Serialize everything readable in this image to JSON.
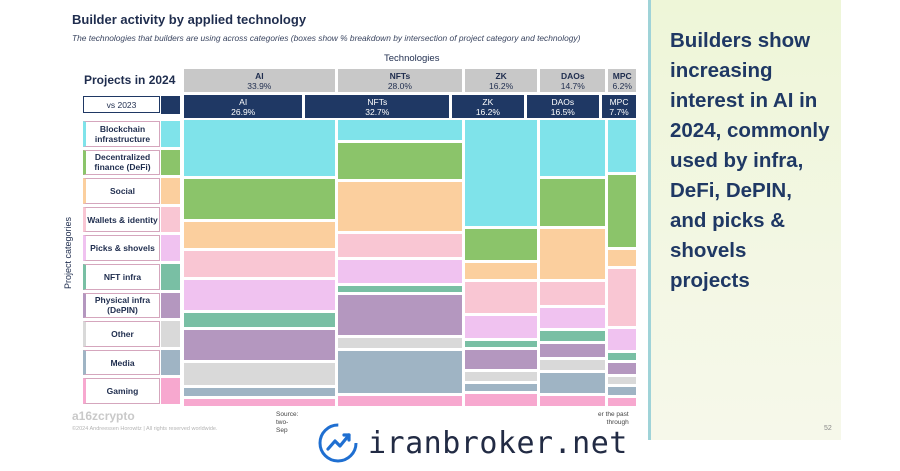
{
  "title": "Builder activity by applied technology",
  "subtitle": "The technologies that builders are using across categories (boxes show % breakdown by intersection of project category and technology)",
  "technologies_label": "Technologies",
  "projects_label": "Projects in 2024",
  "vs_label": "vs 2023",
  "y_axis_label": "Project categories",
  "logo_text": "a16zcrypto",
  "footer_text": "©2024 Andreessen Horowitz | All rights reserved worldwide.",
  "source_text": [
    "Source:",
    "two-",
    "Sep"
  ],
  "source_text_right": [
    "er the past",
    "through"
  ],
  "page_number": "52",
  "panel_text": "Builders show increasing interest in AI in 2024, commonly used by infra, DeFi, DePIN, and picks & shovels projects",
  "watermark_text": "iranbroker.net",
  "colors": {
    "navy": "#1f3864",
    "header_gray": "#c8c8c8",
    "panel_bg": "#eef6d8"
  },
  "chart_data": {
    "type": "mekko",
    "title": "Builder activity by applied technology",
    "xlabel": "Technologies",
    "ylabel": "Project categories",
    "technologies_2024": [
      {
        "name": "AI",
        "share": "33.9%"
      },
      {
        "name": "NFTs",
        "share": "28.0%"
      },
      {
        "name": "ZK",
        "share": "16.2%"
      },
      {
        "name": "DAOs",
        "share": "14.7%"
      },
      {
        "name": "MPC",
        "share": "6.2%"
      }
    ],
    "technologies_2023": [
      {
        "name": "AI",
        "share": "26.9%"
      },
      {
        "name": "NFTs",
        "share": "32.7%"
      },
      {
        "name": "ZK",
        "share": "16.2%"
      },
      {
        "name": "DAOs",
        "share": "16.5%"
      },
      {
        "name": "MPC",
        "share": "7.7%"
      }
    ],
    "categories": [
      {
        "label": "Blockchain infrastructure",
        "color": "#7fe3ea"
      },
      {
        "label": "Decentralized finance (DeFi)",
        "color": "#8bc46a"
      },
      {
        "label": "Social",
        "color": "#fbcf9e"
      },
      {
        "label": "Wallets & identity",
        "color": "#f9c6d3"
      },
      {
        "label": "Picks & shovels",
        "color": "#f0c2f0"
      },
      {
        "label": "NFT infra",
        "color": "#79bfa4"
      },
      {
        "label": "Physical infra (DePIN)",
        "color": "#b497bf"
      },
      {
        "label": "Other",
        "color": "#d9d9d9"
      },
      {
        "label": "Media",
        "color": "#9fb4c4"
      },
      {
        "label": "Gaming",
        "color": "#f7a8cf"
      }
    ],
    "percent_by_category": {
      "AI": [
        15,
        11,
        7,
        7,
        8,
        4,
        8,
        6,
        2,
        2
      ],
      "NFTs": [
        6,
        11,
        15,
        7,
        7,
        2,
        12,
        3,
        13,
        3
      ],
      "ZK": [
        34,
        10,
        5,
        10,
        7,
        2,
        6,
        3,
        2,
        4
      ],
      "DAOs": [
        17,
        14,
        15,
        7,
        6,
        3,
        4,
        3,
        6,
        3
      ],
      "MPC": [
        20,
        28,
        6,
        22,
        8,
        3,
        4,
        3,
        3,
        3
      ]
    }
  }
}
